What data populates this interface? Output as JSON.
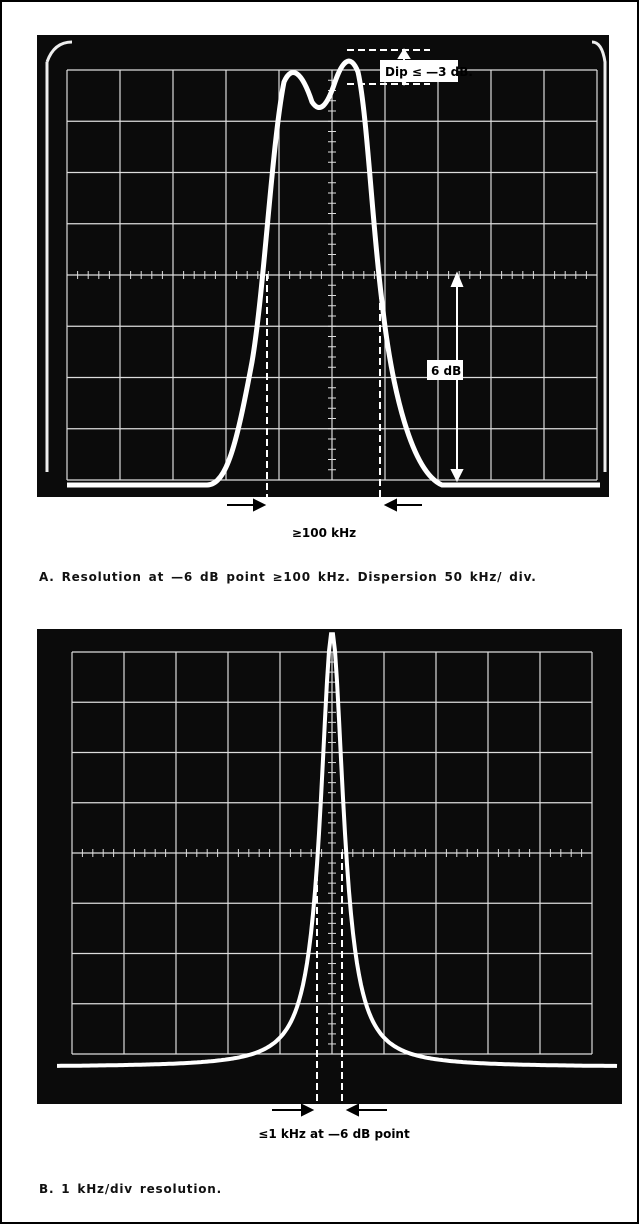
{
  "figure_a": {
    "dip_label": "Dip ≤ —3 dB.",
    "level_label": "6 dB",
    "width_label": "≥100 kHz",
    "caption": "A. Resolution at —6 dB point ≥100 kHz. Dispersion 50 kHz/ div."
  },
  "figure_b": {
    "width_label": "≤1 kHz at —6 dB point",
    "caption": "B. 1 kHz/div resolution."
  }
}
